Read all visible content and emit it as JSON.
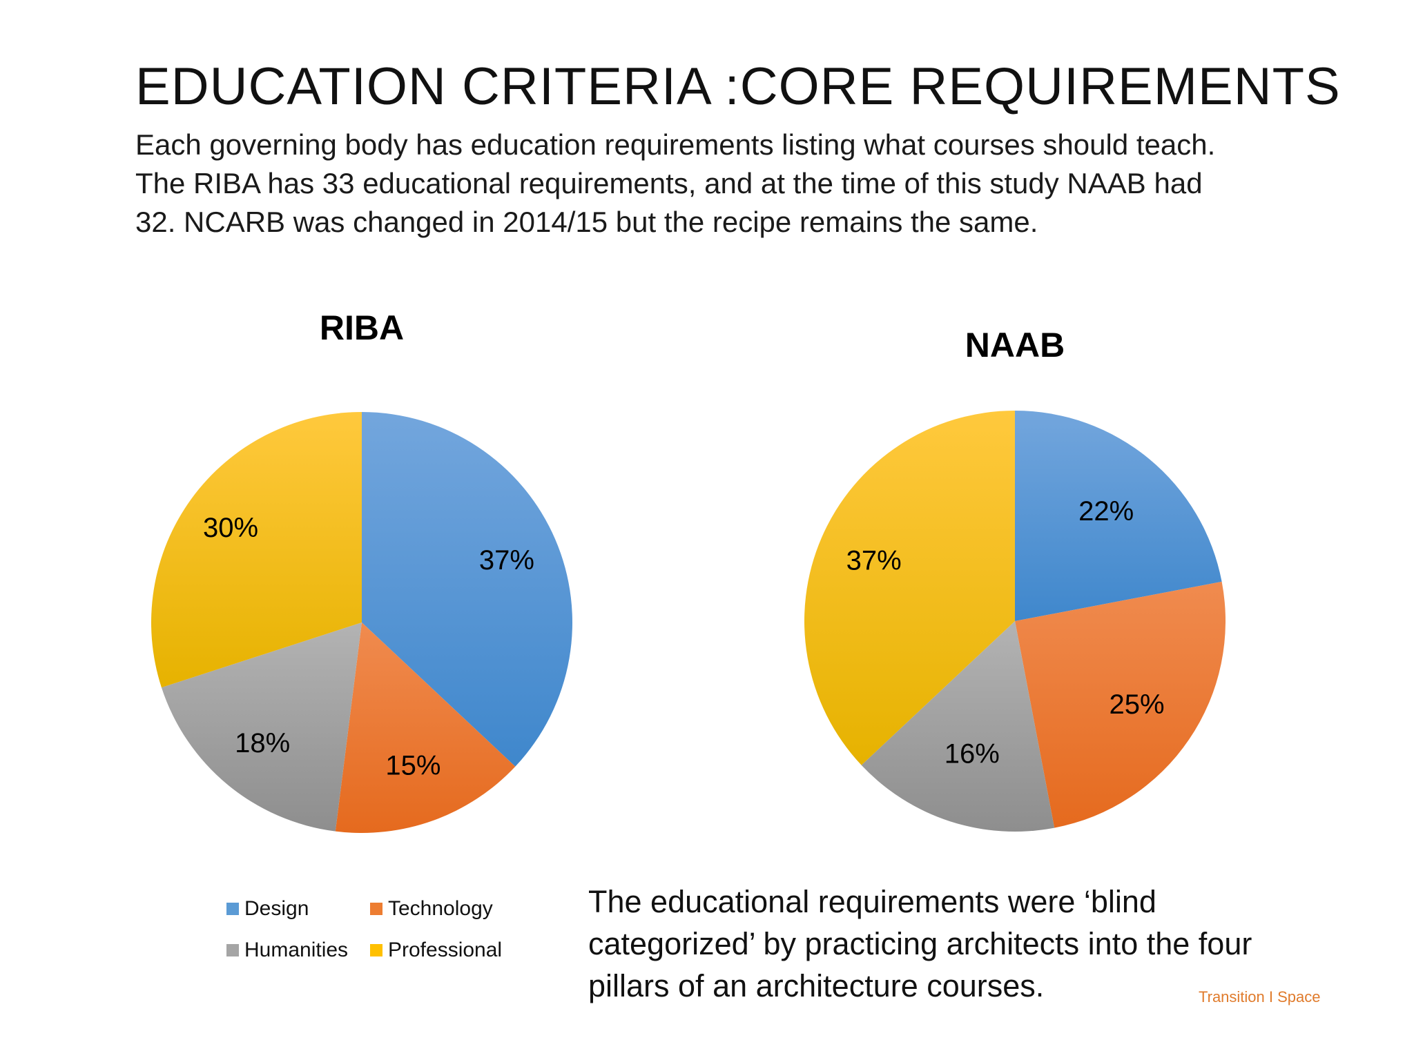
{
  "slide": {
    "title": "EDUCATION CRITERIA :CORE REQUIREMENTS",
    "subtitle_lines": [
      "Each governing body has education requirements listing what courses should teach.",
      "The RIBA has 33 educational requirements, and at the time of this study NAAB had",
      "32. NCARB was changed in 2014/15 but the recipe remains the same."
    ],
    "note_lines": [
      "The educational requirements were ‘blind",
      "categorized’ by practicing architects  into the four",
      "pillars of an architecture courses."
    ],
    "footer": "Transition I Space"
  },
  "legend": {
    "placement": "bottom-left",
    "items": [
      {
        "label": "Design",
        "color": "#5B9BD5"
      },
      {
        "label": "Technology",
        "color": "#ED7D31"
      },
      {
        "label": "Humanities",
        "color": "#A5A5A5"
      },
      {
        "label": "Professional",
        "color": "#FFC000"
      }
    ]
  },
  "chart_data": [
    {
      "type": "pie",
      "title": "RIBA",
      "categories": [
        "Design",
        "Technology",
        "Humanities",
        "Professional"
      ],
      "values": [
        37,
        15,
        18,
        30
      ],
      "labels": [
        "37%",
        "15%",
        "18%",
        "30%"
      ],
      "colors": [
        "#5B9BD5",
        "#ED7D31",
        "#A5A5A5",
        "#FFC000"
      ]
    },
    {
      "type": "pie",
      "title": "NAAB",
      "categories": [
        "Design",
        "Technology",
        "Humanities",
        "Professional"
      ],
      "values": [
        22,
        25,
        16,
        37
      ],
      "labels": [
        "22%",
        "25%",
        "16%",
        "37%"
      ],
      "colors": [
        "#5B9BD5",
        "#ED7D31",
        "#A5A5A5",
        "#FFC000"
      ]
    }
  ]
}
